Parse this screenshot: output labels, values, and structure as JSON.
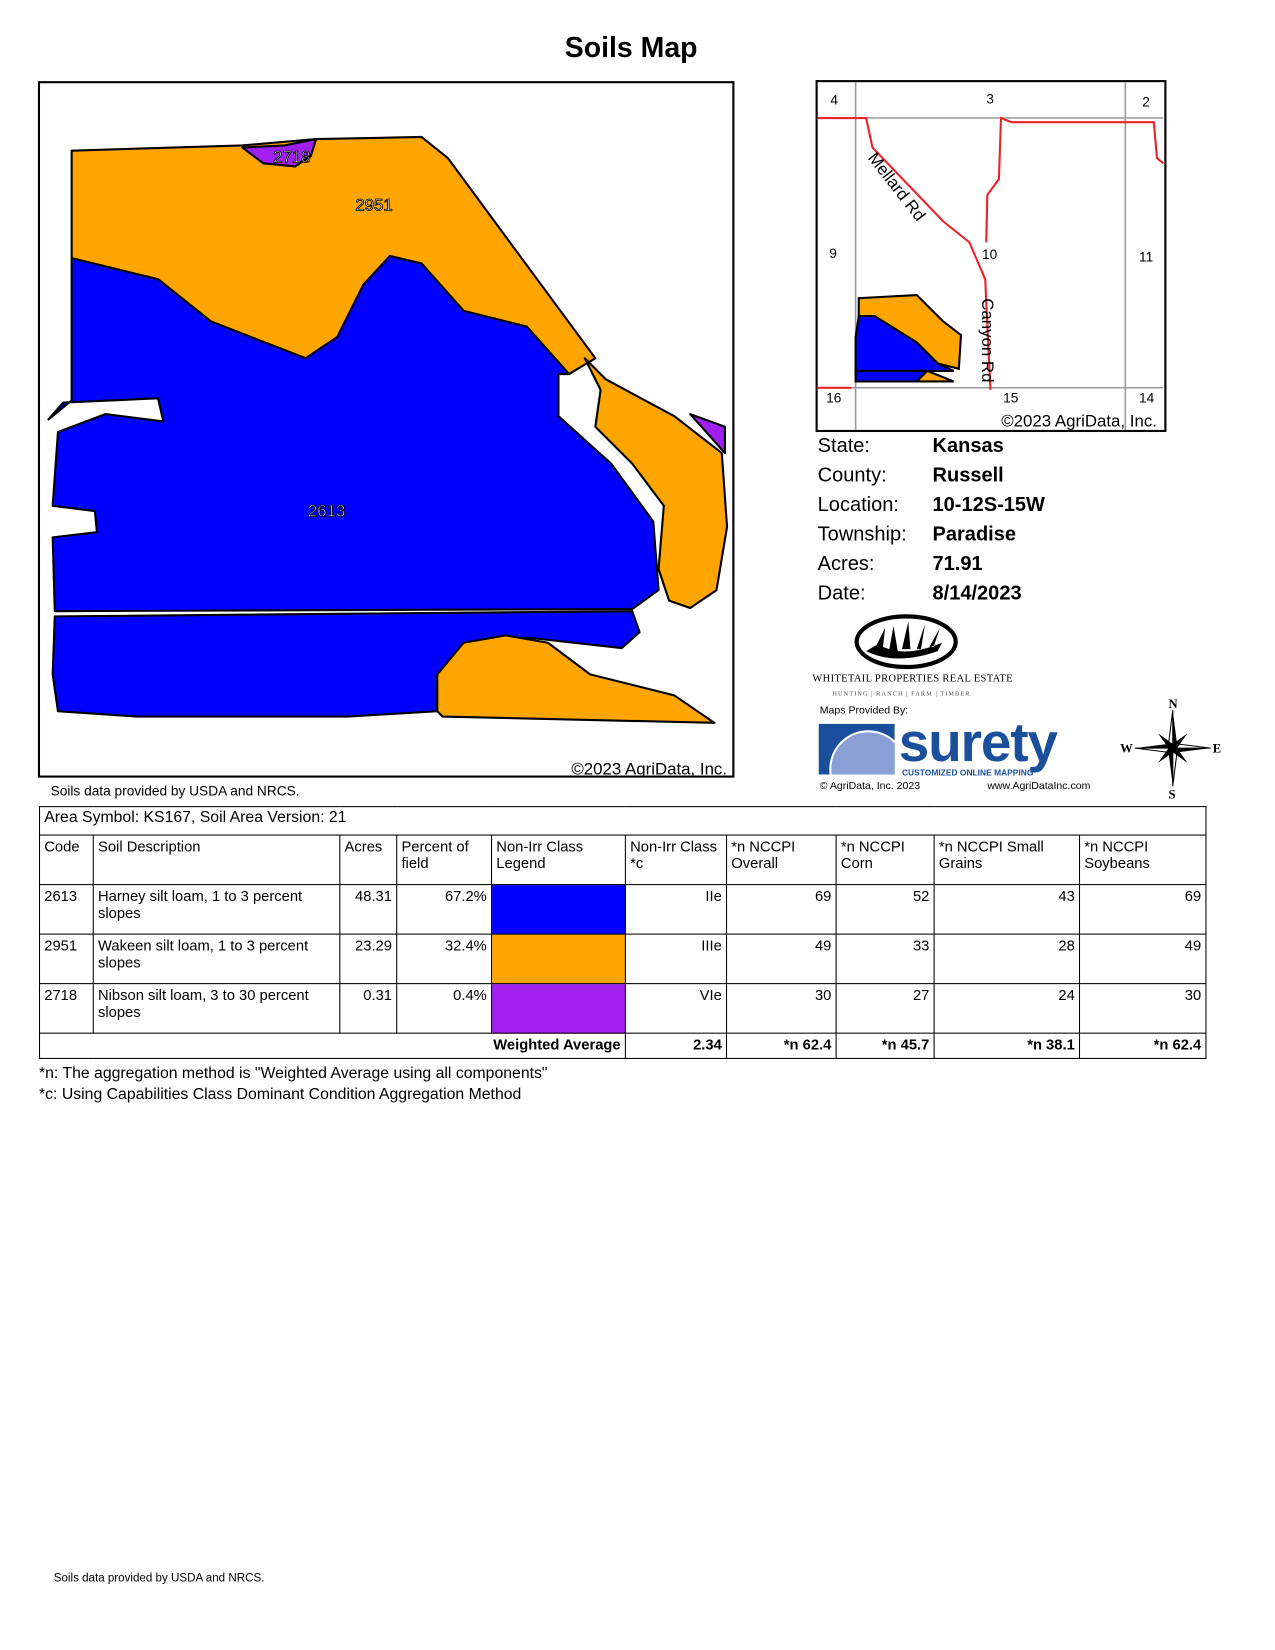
{
  "title": "Soils Map",
  "map": {
    "labels": [
      "2718",
      "2951",
      "2613"
    ],
    "copyright": "©2023 AgriData, Inc.",
    "source_note": "Soils data provided by USDA and NRCS.",
    "colors": {
      "2613": "#0000ff",
      "2951": "#ffa500",
      "2718": "#a020f0"
    }
  },
  "locator_map": {
    "sections": [
      "4",
      "3",
      "2",
      "9",
      "10",
      "11",
      "16",
      "15",
      "14"
    ],
    "roads": [
      "Mellard Rd",
      "Canyon Rd"
    ],
    "copyright": "©2023 AgriData, Inc.",
    "road_color": "#e8242b"
  },
  "info": [
    {
      "label": "State:",
      "value": "Kansas"
    },
    {
      "label": "County:",
      "value": "Russell"
    },
    {
      "label": "Location:",
      "value": "10-12S-15W"
    },
    {
      "label": "Township:",
      "value": "Paradise"
    },
    {
      "label": "Acres:",
      "value": "71.91"
    },
    {
      "label": "Date:",
      "value": "8/14/2023"
    }
  ],
  "logos": {
    "whitetail": "Whitetail Properties Real Estate",
    "whitetail_tagline": "HUNTING | RANCH | FARM | TIMBER",
    "maps_provided_by": "Maps Provided By:",
    "surety": "surety",
    "surety_tagline": "CUSTOMIZED ONLINE MAPPING",
    "agridata_copyright": "© AgriData, Inc. 2023",
    "agridata_url": "www.AgriDataInc.com"
  },
  "compass": {
    "n": "N",
    "s": "S",
    "e": "E",
    "w": "W"
  },
  "table": {
    "area_symbol": "Area Symbol: KS167, Soil Area Version: 21",
    "headers": [
      "Code",
      "Soil Description",
      "Acres",
      "Percent of field",
      "Non-Irr Class Legend",
      "Non-Irr Class *c",
      "*n NCCPI Overall",
      "*n NCCPI Corn",
      "*n NCCPI Small Grains",
      "*n NCCPI Soybeans"
    ],
    "rows": [
      {
        "code": "2613",
        "desc": "Harney silt loam, 1 to 3 percent slopes",
        "acres": "48.31",
        "pct": "67.2%",
        "color": "#0000ff",
        "class": "IIe",
        "overall": "69",
        "corn": "52",
        "small": "43",
        "soy": "69"
      },
      {
        "code": "2951",
        "desc": "Wakeen silt loam, 1 to 3 percent slopes",
        "acres": "23.29",
        "pct": "32.4%",
        "color": "#ffa500",
        "class": "IIIe",
        "overall": "49",
        "corn": "33",
        "small": "28",
        "soy": "49"
      },
      {
        "code": "2718",
        "desc": "Nibson silt loam, 3 to 30 percent slopes",
        "acres": "0.31",
        "pct": "0.4%",
        "color": "#a020f0",
        "class": "VIe",
        "overall": "30",
        "corn": "27",
        "small": "24",
        "soy": "30"
      }
    ],
    "weighted": {
      "label": "Weighted Average",
      "class": "2.34",
      "overall": "*n 62.4",
      "corn": "*n 45.7",
      "small": "*n 38.1",
      "soy": "*n 62.4"
    }
  },
  "notes": [
    "*n: The aggregation method is \"Weighted Average using all components\"",
    "*c:  Using Capabilities Class Dominant Condition Aggregation Method"
  ],
  "footer": "Soils data provided by USDA and NRCS."
}
